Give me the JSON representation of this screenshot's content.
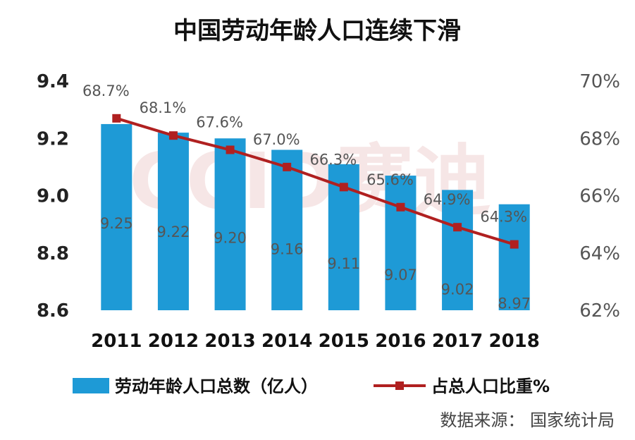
{
  "chart_data": {
    "type": "bar",
    "title": "中国劳动年龄人口连续下滑",
    "categories": [
      "2011",
      "2012",
      "2013",
      "2014",
      "2015",
      "2016",
      "2017",
      "2018"
    ],
    "series": [
      {
        "name": "劳动年龄人口总数（亿人）",
        "type": "bar",
        "axis": "left",
        "values": [
          9.25,
          9.22,
          9.2,
          9.16,
          9.11,
          9.07,
          9.02,
          8.97
        ],
        "labels": [
          "9.25",
          "9.22",
          "9.20",
          "9.16",
          "9.11",
          "9.07",
          "9.02",
          "8.97"
        ],
        "color": "#1e9ad6"
      },
      {
        "name": "占总人口比重%",
        "type": "line",
        "axis": "right",
        "values": [
          68.7,
          68.1,
          67.6,
          67.0,
          66.3,
          65.6,
          64.9,
          64.3
        ],
        "labels": [
          "68.7%",
          "68.1%",
          "67.6%",
          "67.0%",
          "66.3%",
          "65.6%",
          "64.9%",
          "64.3%"
        ],
        "color": "#b02020"
      }
    ],
    "y_left": {
      "min": 8.6,
      "max": 9.4,
      "ticks": [
        "8.6",
        "8.8",
        "9.0",
        "9.2",
        "9.4"
      ]
    },
    "y_right": {
      "min": 62,
      "max": 70,
      "ticks": [
        "62%",
        "64%",
        "66%",
        "68%",
        "70%"
      ]
    },
    "legend_placement": "bottom",
    "grid": false
  },
  "watermark": "CCID赛迪",
  "source": "数据来源： 国家统计局"
}
